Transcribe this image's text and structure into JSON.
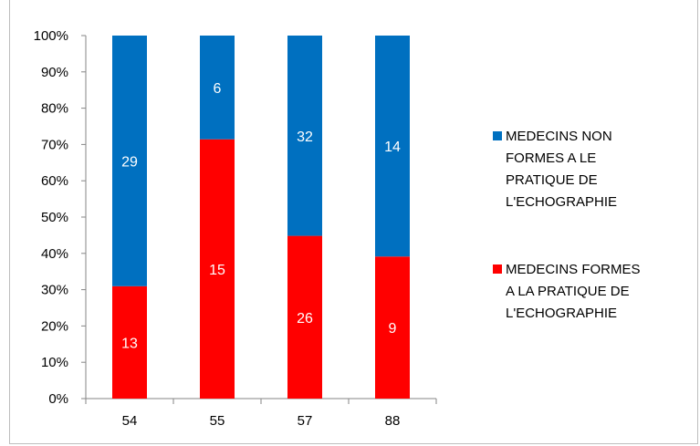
{
  "chart_data": {
    "type": "bar",
    "stacked": "percent",
    "categories": [
      "54",
      "55",
      "57",
      "88"
    ],
    "series": [
      {
        "name": "MEDECINS FORMES A LA PRATIQUE DE L'ECHOGRAPHIE",
        "legend_lines": [
          "MEDECINS FORMES",
          "A LA PRATIQUE DE",
          "L'ECHOGRAPHIE"
        ],
        "color": "#ff0000",
        "values": [
          13,
          15,
          26,
          9
        ]
      },
      {
        "name": "MEDECINS NON FORMES A LE PRATIQUE DE L'ECHOGRAPHIE",
        "legend_lines": [
          "MEDECINS NON",
          "FORMES A LE",
          "PRATIQUE DE",
          "L'ECHOGRAPHIE"
        ],
        "color": "#0070c0",
        "values": [
          29,
          6,
          32,
          14
        ]
      }
    ],
    "y_ticks": [
      "0%",
      "10%",
      "20%",
      "30%",
      "40%",
      "50%",
      "60%",
      "70%",
      "80%",
      "90%",
      "100%"
    ],
    "ylim": [
      0,
      100
    ],
    "grid": false,
    "legend_position": "right",
    "title": "",
    "xlabel": "",
    "ylabel": ""
  }
}
